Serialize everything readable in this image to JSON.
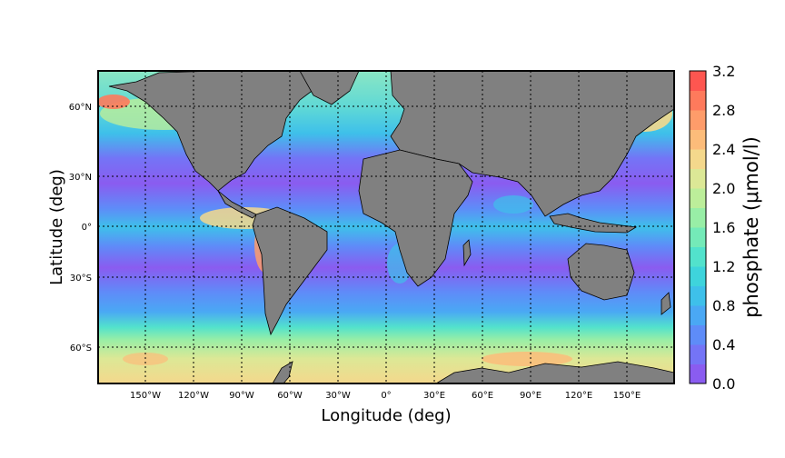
{
  "map": {
    "xlabel": "Longitude (deg)",
    "ylabel": "Latitude (deg)",
    "lon_ticks": [
      "150°W",
      "120°W",
      "90°W",
      "60°W",
      "30°W",
      "0°",
      "30°E",
      "60°E",
      "90°E",
      "120°E",
      "150°E"
    ],
    "lat_ticks": [
      "60°N",
      "30°N",
      "0°",
      "30°S",
      "60°S"
    ],
    "land_color": "#808080",
    "variable": "phosphate",
    "region": "global ocean, approx 180°W–180°E, 80°S–80°N"
  },
  "colorbar": {
    "label": "phosphate (μmol/l)",
    "ticks": [
      "0.0",
      "0.4",
      "0.8",
      "1.2",
      "1.6",
      "2.0",
      "2.4",
      "2.8",
      "3.2"
    ],
    "levels": [
      0.0,
      0.2,
      0.4,
      0.6,
      0.8,
      1.0,
      1.2,
      1.4,
      1.6,
      1.8,
      2.0,
      2.2,
      2.4,
      2.6,
      2.8,
      3.0,
      3.2
    ],
    "colors": [
      "#8a5cf0",
      "#7474f6",
      "#5e8cf8",
      "#4aa8f4",
      "#3ec0ea",
      "#3ed4dc",
      "#52e2cc",
      "#74eab8",
      "#98eea6",
      "#bcee9a",
      "#dce896",
      "#f4d88c",
      "#fcbc7a",
      "#fe9c6a",
      "#fe7a5c",
      "#fe5650"
    ]
  }
}
